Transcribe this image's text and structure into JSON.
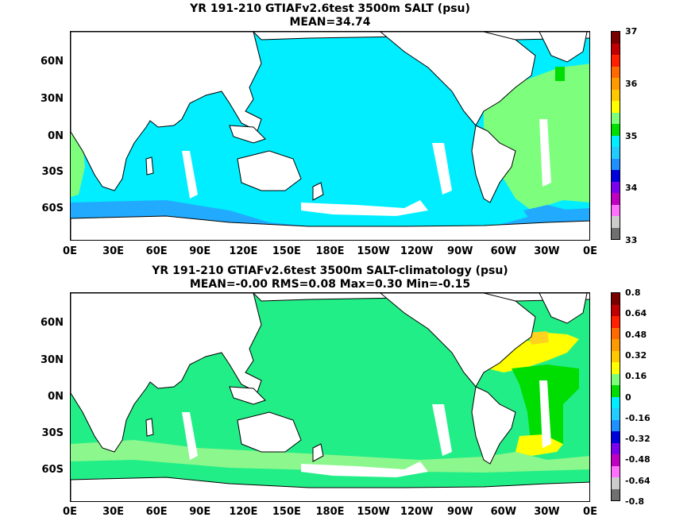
{
  "panels": [
    {
      "title_line1": "YR 191-210 GTIAFv2.6test 3500m SALT (psu)",
      "title_line2": "MEAN=34.74",
      "colorbar_labels": [
        "37",
        "36",
        "35",
        "34",
        "33"
      ],
      "colors": {
        "ocean": "#00eeff",
        "atlantic": "#7dff7d",
        "deep_south": "#22aaff",
        "land": "#ffffff"
      }
    },
    {
      "title_line1": "YR 191-210 GTIAFv2.6test 3500m SALT-climatology (psu)",
      "title_line2": "MEAN=-0.00   RMS=0.08   Max=0.30   Min=-0.15",
      "colorbar_labels": [
        "0.8",
        "0.64",
        "0.48",
        "0.32",
        "0.16",
        "0",
        "-0.16",
        "-0.32",
        "-0.48",
        "-0.64",
        "-0.8"
      ],
      "colors": {
        "ocean": "#22ee88",
        "light": "#8cf78c",
        "yellow": "#ffff00",
        "orange_yellow": "#ffd21e",
        "green": "#00dd00",
        "land": "#ffffff"
      }
    }
  ],
  "lat_labels": [
    "60N",
    "30N",
    "0N",
    "30S",
    "60S"
  ],
  "lon_labels": [
    "0E",
    "30E",
    "60E",
    "90E",
    "120E",
    "150E",
    "180E",
    "150W",
    "120W",
    "90W",
    "60W",
    "30W",
    "0E"
  ],
  "colorbar_colors": [
    "#7a0000",
    "#c00000",
    "#ff2000",
    "#ff6a00",
    "#ff9a00",
    "#ffc800",
    "#ffff00",
    "#7dff7d",
    "#00dd00",
    "#00eeff",
    "#22ccff",
    "#1e90ff",
    "#0000dd",
    "#7a00ee",
    "#c000c0",
    "#ff70ff",
    "#cccccc",
    "#707070"
  ]
}
